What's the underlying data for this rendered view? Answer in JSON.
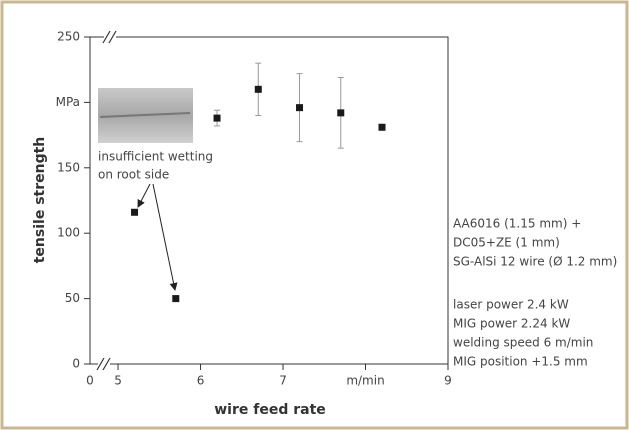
{
  "chart_data": {
    "type": "scatter",
    "y_label": "tensile strength",
    "x_label": "wire feed rate",
    "x_origin_label": "0",
    "x": [
      5.2,
      5.7,
      6.2,
      6.7,
      7.2,
      7.7,
      8.2
    ],
    "values": [
      116,
      50,
      188,
      210,
      196,
      192,
      181
    ],
    "errors": [
      null,
      null,
      6,
      20,
      26,
      27,
      null
    ],
    "color": "#1a1a1a",
    "error_color": "#999999",
    "xlim": [
      4.66,
      9
    ],
    "xticks": [
      5,
      6,
      7,
      {
        "value": 8,
        "label": "m/min"
      },
      9
    ],
    "ylim": [
      0,
      250
    ],
    "yticks": [
      0,
      50,
      100,
      150,
      {
        "value": 200,
        "label": "MPa"
      },
      250
    ],
    "annotation": [
      "insufficient wetting",
      "on root side"
    ],
    "notes": [
      [
        "AA6016 (1.15 mm) +",
        "DC05+ZE (1 mm)",
        "SG-AlSi 12 wire (Ø 1.2 mm)"
      ],
      [
        "laser power 2.4 kW",
        "MIG power 2.24 kW",
        "welding speed 6 m/min",
        "MIG position +1.5 mm"
      ]
    ]
  }
}
